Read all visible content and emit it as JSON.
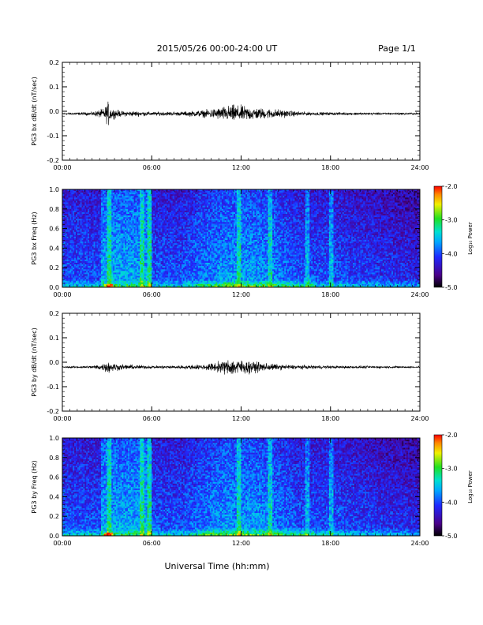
{
  "header": {
    "date_range": "2015/05/26  00:00-24:00 UT",
    "page": "Page 1/1"
  },
  "xaxis": {
    "label": "Universal Time (hh:mm)",
    "ticks": [
      "00:00",
      "06:00",
      "12:00",
      "18:00",
      "24:00"
    ]
  },
  "chart_data": [
    {
      "type": "line",
      "ylabel": "PG3 bx dB/dt (nT/sec)",
      "xlim": [
        0,
        24
      ],
      "ylim": [
        -0.2,
        0.2
      ],
      "yticks": [
        "0.2",
        "0.1",
        "0.0",
        "-0.1",
        "-0.2"
      ],
      "xticks": [
        "00:00",
        "06:00",
        "12:00",
        "18:00",
        "24:00"
      ],
      "baseline": -0.01,
      "envelope": {
        "hours": [
          0,
          2,
          2.8,
          3.1,
          3.3,
          4,
          5,
          6,
          8,
          9.5,
          10.5,
          11.5,
          12.5,
          13.5,
          14.5,
          15.5,
          16.5,
          18,
          20,
          22,
          24
        ],
        "amplitude": [
          0.005,
          0.01,
          0.03,
          0.07,
          0.03,
          0.015,
          0.015,
          0.01,
          0.012,
          0.02,
          0.035,
          0.05,
          0.04,
          0.03,
          0.025,
          0.015,
          0.01,
          0.008,
          0.007,
          0.006,
          0.005
        ]
      }
    },
    {
      "type": "heatmap",
      "ylabel": "PG3 bx Freq (Hz)",
      "xlim": [
        0,
        24
      ],
      "ylim": [
        0.0,
        1.0
      ],
      "yticks": [
        "1.0",
        "0.8",
        "0.6",
        "0.4",
        "0.2",
        "0.0"
      ],
      "xticks": [
        "00:00",
        "06:00",
        "12:00",
        "18:00",
        "24:00"
      ],
      "colorbar": {
        "label": "Log₁₀ Power",
        "range": [
          -5.0,
          -2.0
        ],
        "ticks": [
          "-2.0",
          "-3.0",
          "-4.0",
          "-5.0"
        ]
      }
    },
    {
      "type": "line",
      "ylabel": "PG3 by dB/dt (nT/sec)",
      "xlim": [
        0,
        24
      ],
      "ylim": [
        -0.2,
        0.2
      ],
      "yticks": [
        "0.2",
        "0.1",
        "0.0",
        "-0.1",
        "-0.2"
      ],
      "xticks": [
        "00:00",
        "06:00",
        "12:00",
        "18:00",
        "24:00"
      ],
      "baseline": -0.02,
      "envelope": {
        "hours": [
          0,
          2,
          2.8,
          3.1,
          3.3,
          4,
          5,
          6,
          8,
          9.5,
          10.5,
          11.5,
          12.5,
          13.5,
          14.5,
          15.5,
          16.5,
          18,
          20,
          22,
          24
        ],
        "amplitude": [
          0.004,
          0.008,
          0.02,
          0.04,
          0.025,
          0.015,
          0.012,
          0.008,
          0.01,
          0.015,
          0.03,
          0.05,
          0.035,
          0.025,
          0.015,
          0.012,
          0.01,
          0.008,
          0.007,
          0.006,
          0.004
        ]
      }
    },
    {
      "type": "heatmap",
      "ylabel": "PG3 by Freq (Hz)",
      "xlim": [
        0,
        24
      ],
      "ylim": [
        0.0,
        1.0
      ],
      "yticks": [
        "1.0",
        "0.8",
        "0.6",
        "0.4",
        "0.2",
        "0.0"
      ],
      "xticks": [
        "00:00",
        "06:00",
        "12:00",
        "18:00",
        "24:00"
      ],
      "colorbar": {
        "label": "Log₁₀ Power",
        "range": [
          -5.0,
          -2.0
        ],
        "ticks": [
          "-2.0",
          "-3.0",
          "-4.0",
          "-5.0"
        ]
      }
    }
  ]
}
